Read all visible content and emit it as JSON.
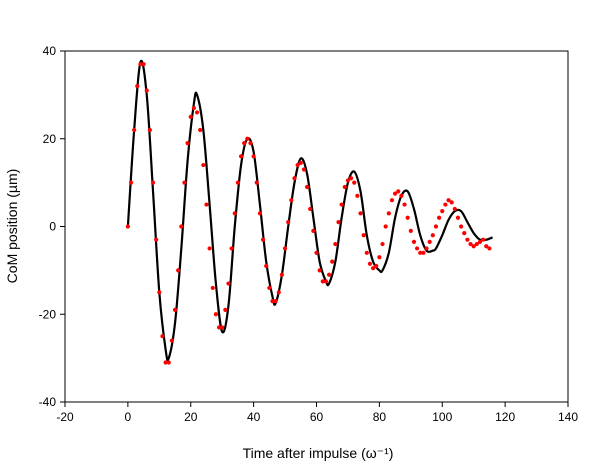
{
  "chart_data": {
    "type": "line",
    "xlabel": "Time after impulse (ω⁻¹)",
    "ylabel": "CoM position (µm)",
    "xlim": [
      -20,
      140
    ],
    "ylim": [
      -40,
      40
    ],
    "xticks": [
      -20,
      0,
      20,
      40,
      60,
      80,
      100,
      120,
      140
    ],
    "yticks": [
      -40,
      -20,
      0,
      20,
      40
    ],
    "xtick_labels": [
      "-20",
      "0",
      "20",
      "40",
      "60",
      "80",
      "100",
      "120",
      "140"
    ],
    "ytick_labels": [
      "-40",
      "-20",
      "0",
      "20",
      "40"
    ],
    "grid": false,
    "colors": {
      "line": "#000000",
      "dots": "#ff0000"
    },
    "series": [
      {
        "style": "solid-line",
        "color": "#000000",
        "x": [
          0,
          2,
          4,
          6,
          8,
          10,
          12,
          13,
          15,
          17,
          19,
          21,
          22,
          24,
          26,
          28,
          30,
          32,
          34,
          36,
          38,
          40,
          42,
          44,
          46,
          47,
          49,
          51,
          53,
          55,
          57,
          59,
          61,
          63,
          64,
          66,
          68,
          70,
          72,
          74,
          76,
          78,
          80,
          81,
          83,
          85,
          87,
          89,
          91,
          93,
          95,
          97,
          98,
          100,
          102,
          104,
          106,
          108,
          110,
          112,
          114,
          116
        ],
        "y": [
          0,
          22,
          37.5,
          30,
          8,
          -15,
          -28,
          -30,
          -22,
          -5,
          15,
          28,
          30,
          22,
          5,
          -13,
          -24,
          -18,
          0,
          14,
          20,
          17,
          5,
          -8,
          -16,
          -17.5,
          -11,
          0,
          10,
          15.5,
          12,
          2,
          -8,
          -12.5,
          -13,
          -8,
          2,
          10,
          12.5,
          8,
          -2,
          -8,
          -10,
          -10,
          -6,
          2,
          7,
          8,
          4,
          -2,
          -5.5,
          -5.5,
          -5,
          -2,
          1.5,
          3.5,
          3.5,
          1,
          -1.5,
          -3,
          -3,
          -2.5
        ]
      },
      {
        "style": "dots",
        "color": "#ff0000",
        "x": [
          0,
          1,
          2,
          3,
          4,
          5,
          6,
          7,
          8,
          9,
          10,
          11,
          12,
          13,
          14,
          15,
          16,
          17,
          18,
          19,
          20,
          21,
          22,
          23,
          24,
          25,
          26,
          27,
          28,
          29,
          30,
          31,
          32,
          33,
          34,
          35,
          36,
          37,
          38,
          39,
          40,
          41,
          42,
          43,
          44,
          45,
          46,
          47,
          48,
          49,
          50,
          51,
          52,
          53,
          54,
          55,
          56,
          57,
          58,
          59,
          60,
          61,
          62,
          63,
          64,
          65,
          66,
          67,
          68,
          69,
          70,
          71,
          72,
          73,
          74,
          75,
          76,
          77,
          78,
          79,
          80,
          81,
          82,
          83,
          84,
          85,
          86,
          87,
          88,
          89,
          90,
          91,
          92,
          93,
          94,
          95,
          96,
          97,
          98,
          99,
          100,
          101,
          102,
          103,
          104,
          105,
          106,
          107,
          108,
          109,
          110,
          111,
          112,
          113,
          114,
          115
        ],
        "y": [
          0,
          10,
          22,
          32,
          37,
          37,
          31,
          22,
          10,
          -3,
          -15,
          -25,
          -31,
          -31,
          -26,
          -19,
          -10,
          0,
          10,
          19,
          25,
          27,
          26,
          22,
          14,
          5,
          -5,
          -14,
          -20,
          -23,
          -23,
          -19,
          -13,
          -5,
          3,
          10,
          16,
          19,
          20,
          19,
          16,
          10,
          3,
          -3,
          -9,
          -14,
          -17,
          -17,
          -15,
          -11,
          -5,
          1,
          6,
          11,
          14,
          14.5,
          13,
          9,
          4,
          -1,
          -6,
          -10,
          -12.5,
          -12.5,
          -11,
          -8,
          -4,
          1,
          5,
          9,
          10.5,
          11,
          10,
          7,
          3,
          -2,
          -6,
          -8.5,
          -9.5,
          -9,
          -7,
          -4,
          0,
          3,
          6,
          7.5,
          8,
          7,
          5,
          2,
          -1,
          -3.5,
          -5,
          -6,
          -6,
          -5,
          -3.5,
          -2,
          0,
          2,
          3.5,
          5,
          6,
          5.5,
          4,
          2,
          0,
          -1.5,
          -3,
          -4,
          -4.5,
          -4,
          -3.5,
          -3,
          -4.5,
          -5
        ]
      }
    ]
  }
}
